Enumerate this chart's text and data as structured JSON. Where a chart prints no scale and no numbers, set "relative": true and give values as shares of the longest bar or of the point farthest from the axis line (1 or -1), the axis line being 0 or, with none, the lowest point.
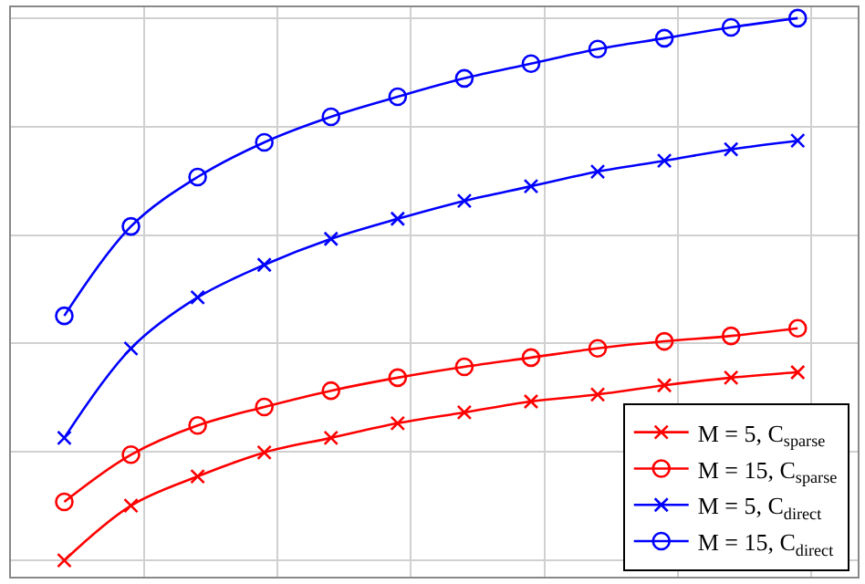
{
  "chart_data": {
    "type": "line",
    "relative": true,
    "categories": [
      null,
      null,
      null,
      null,
      null,
      null,
      null,
      null,
      null,
      null,
      null,
      null
    ],
    "grid": true,
    "legend": "bottom right",
    "series": [
      {
        "name": "M = 5, C$_{sparse}$",
        "color": "#ff0000",
        "marker": "cross",
        "values": [
          0,
          0.101,
          0.155,
          0.199,
          0.226,
          0.253,
          0.273,
          0.293,
          0.306,
          0.323,
          0.337,
          0.347
        ]
      },
      {
        "name": "M = 15, C$_{sparse}$",
        "color": "#ff0000",
        "marker": "circle",
        "values": [
          0.108,
          0.195,
          0.249,
          0.283,
          0.313,
          0.337,
          0.357,
          0.374,
          0.391,
          0.404,
          0.414,
          0.428
        ]
      },
      {
        "name": "M = 5, C$_{direct}$",
        "color": "#0000ff",
        "marker": "cross",
        "values": [
          0.226,
          0.391,
          0.485,
          0.545,
          0.593,
          0.63,
          0.663,
          0.69,
          0.717,
          0.737,
          0.758,
          0.774
        ]
      },
      {
        "name": "M = 15, C$_{direct}$",
        "color": "#0000ff",
        "marker": "circle",
        "values": [
          0.451,
          0.616,
          0.707,
          0.771,
          0.818,
          0.855,
          0.889,
          0.916,
          0.943,
          0.963,
          0.983,
          1
        ]
      }
    ]
  }
}
